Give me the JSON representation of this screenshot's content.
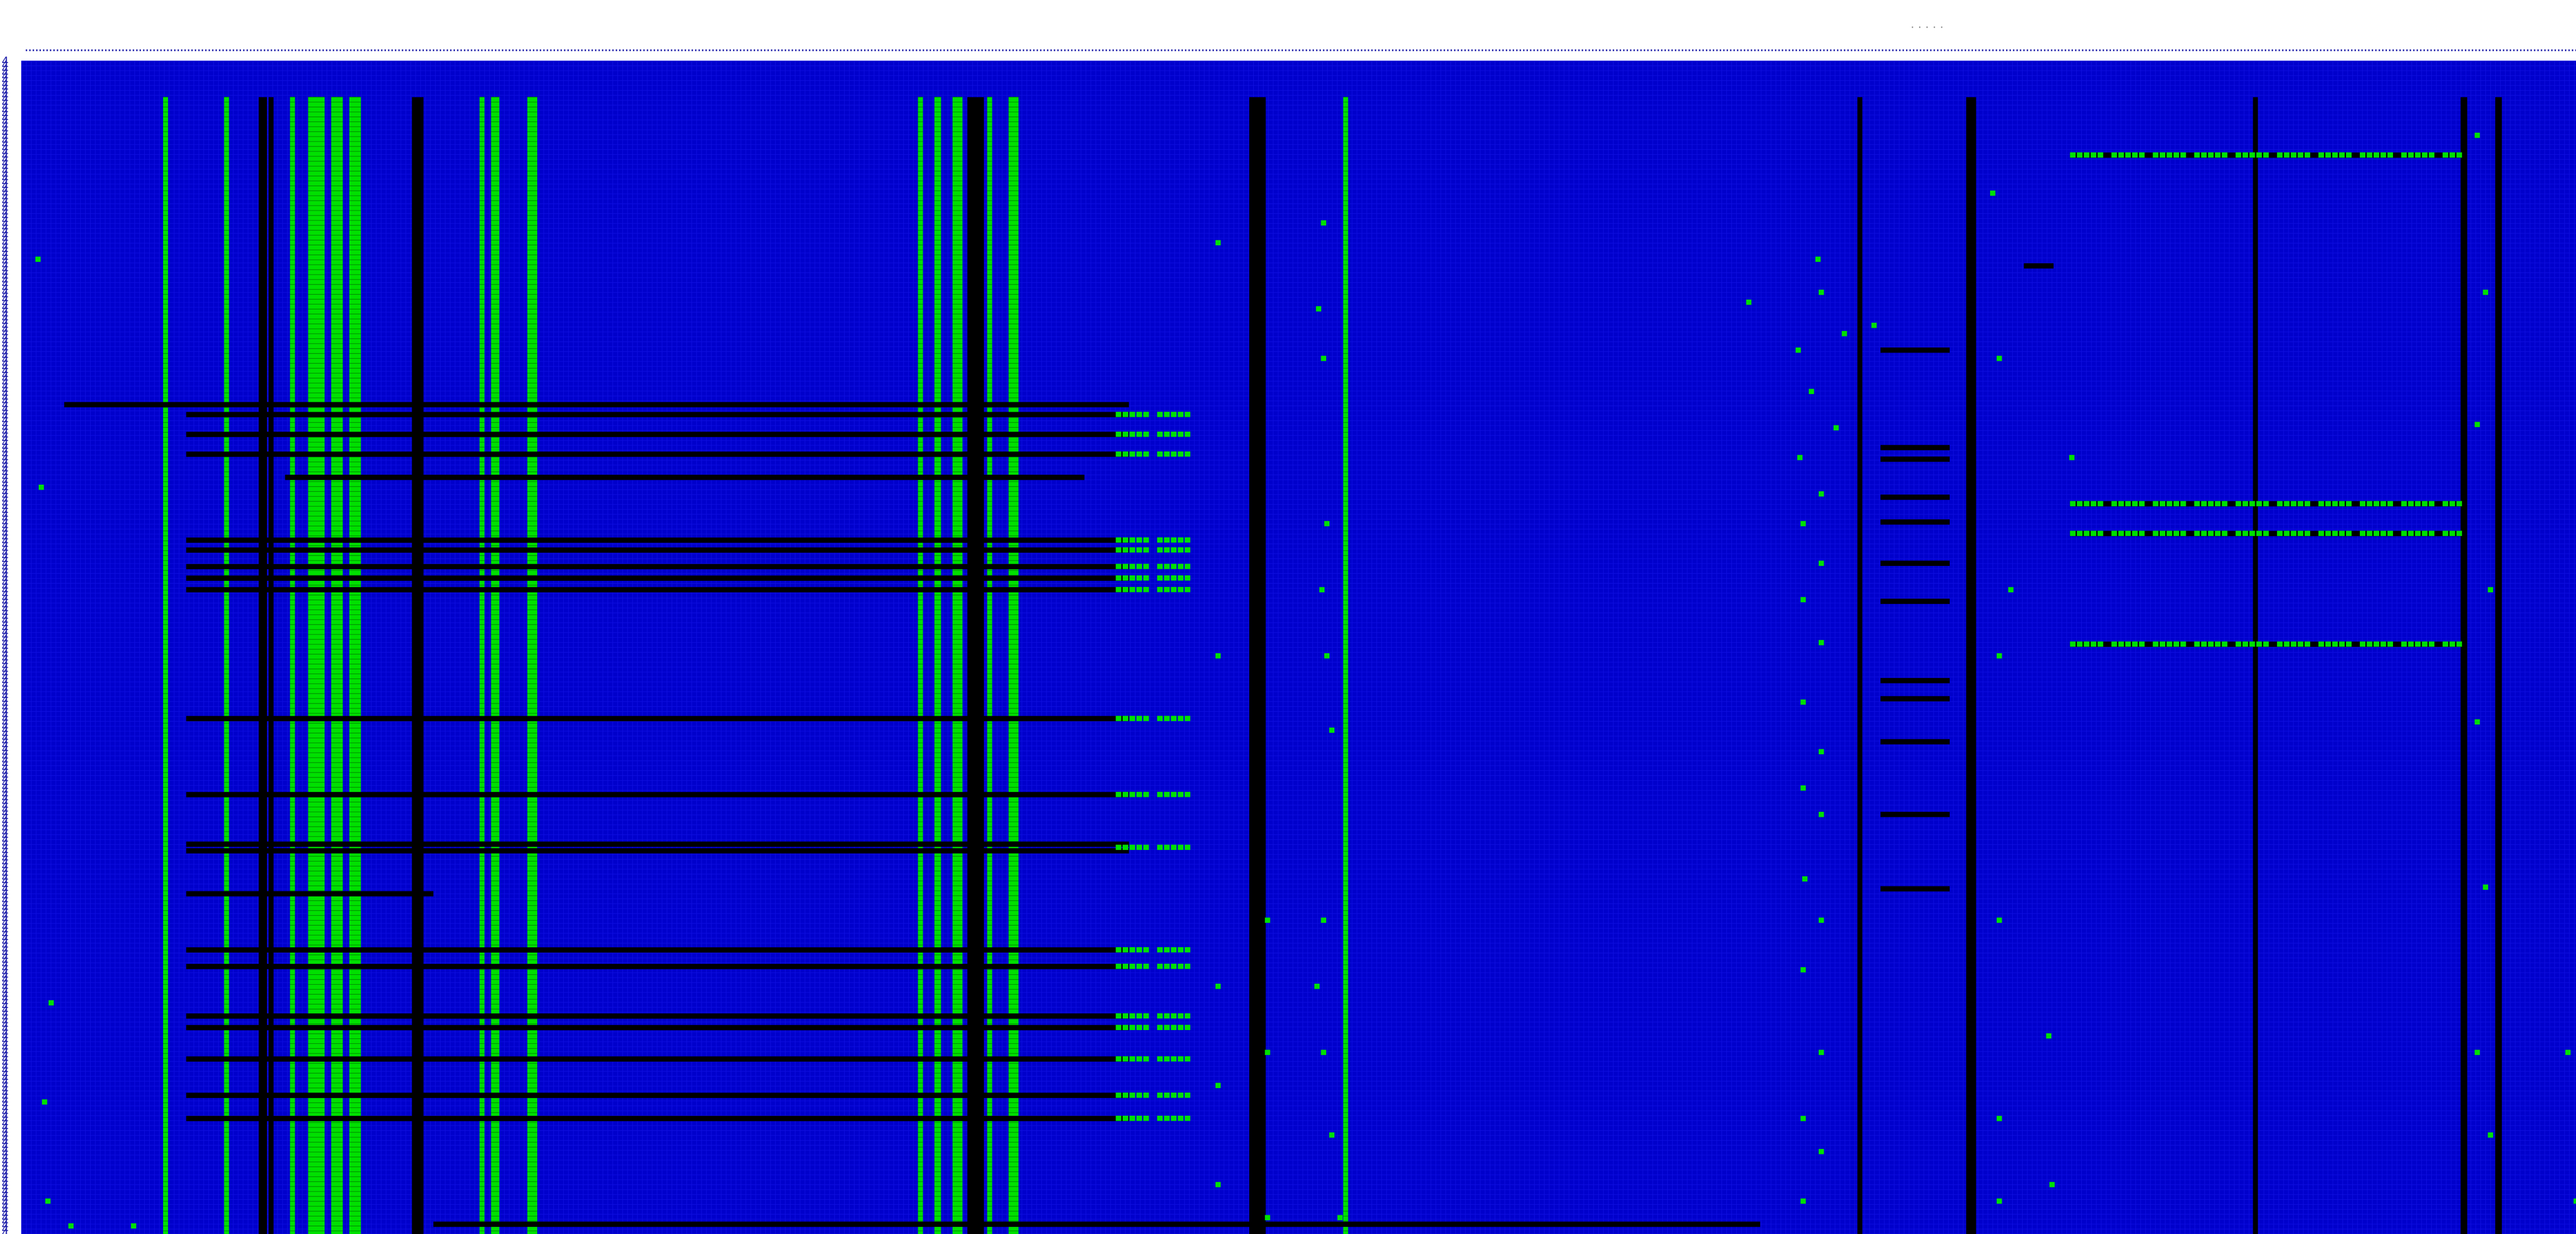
{
  "chart_data": {
    "type": "heatmap",
    "title": "· · · · ·",
    "row_tick_label": "4",
    "col_tick_label": "·",
    "x_categories_count": 1550,
    "y_categories_count": 710,
    "x_range": [
      0,
      1550
    ],
    "y_range": [
      0,
      710
    ],
    "state_legend": [
      {
        "state": "present",
        "color": "#00e000"
      },
      {
        "state": "absent",
        "color": "#0000cc"
      },
      {
        "state": "missing",
        "color": "#000000"
      }
    ],
    "column_bands": [
      {
        "col": 86,
        "width": 3,
        "state": "present",
        "y": [
          22,
          710
        ]
      },
      {
        "col": 123,
        "width": 3,
        "state": "present",
        "y": [
          22,
          710
        ]
      },
      {
        "col": 144,
        "width": 5,
        "state": "missing",
        "y": [
          22,
          710
        ]
      },
      {
        "col": 150,
        "width": 3,
        "state": "missing",
        "y": [
          22,
          710
        ]
      },
      {
        "col": 163,
        "width": 3,
        "state": "present",
        "y": [
          22,
          710
        ]
      },
      {
        "col": 174,
        "width": 10,
        "state": "present",
        "y": [
          22,
          710
        ]
      },
      {
        "col": 188,
        "width": 7,
        "state": "present",
        "y": [
          22,
          710
        ]
      },
      {
        "col": 199,
        "width": 7,
        "state": "present",
        "y": [
          22,
          710
        ]
      },
      {
        "col": 237,
        "width": 7,
        "state": "missing",
        "y": [
          22,
          710
        ]
      },
      {
        "col": 278,
        "width": 3,
        "state": "present",
        "y": [
          22,
          710
        ]
      },
      {
        "col": 285,
        "width": 5,
        "state": "present",
        "y": [
          22,
          710
        ]
      },
      {
        "col": 307,
        "width": 6,
        "state": "present",
        "y": [
          22,
          710
        ]
      },
      {
        "col": 544,
        "width": 3,
        "state": "present",
        "y": [
          22,
          710
        ]
      },
      {
        "col": 554,
        "width": 4,
        "state": "present",
        "y": [
          22,
          710
        ]
      },
      {
        "col": 565,
        "width": 6,
        "state": "present",
        "y": [
          22,
          710
        ]
      },
      {
        "col": 574,
        "width": 10,
        "state": "missing",
        "y": [
          22,
          710
        ]
      },
      {
        "col": 586,
        "width": 3,
        "state": "present",
        "y": [
          22,
          710
        ]
      },
      {
        "col": 599,
        "width": 6,
        "state": "present",
        "y": [
          22,
          710
        ]
      },
      {
        "col": 745,
        "width": 10,
        "state": "missing",
        "y": [
          22,
          710
        ]
      },
      {
        "col": 802,
        "width": 3,
        "state": "present",
        "y": [
          22,
          710
        ]
      },
      {
        "col": 1114,
        "width": 3,
        "state": "missing",
        "y": [
          22,
          710
        ]
      },
      {
        "col": 1180,
        "width": 6,
        "state": "missing",
        "y": [
          22,
          710
        ]
      },
      {
        "col": 1354,
        "width": 3,
        "state": "missing",
        "y": [
          22,
          710
        ]
      },
      {
        "col": 1480,
        "width": 4,
        "state": "missing",
        "y": [
          22,
          710
        ]
      },
      {
        "col": 1501,
        "width": 4,
        "state": "missing",
        "y": [
          22,
          710
        ]
      }
    ],
    "row_bands": [
      {
        "row": 208,
        "x": [
          26,
          672
        ],
        "state": "missing"
      },
      {
        "row": 214,
        "x": [
          100,
          672
        ],
        "state": "missing"
      },
      {
        "row": 226,
        "x": [
          100,
          672
        ],
        "state": "missing"
      },
      {
        "row": 238,
        "x": [
          100,
          672
        ],
        "state": "missing"
      },
      {
        "row": 252,
        "x": [
          160,
          645
        ],
        "state": "missing"
      },
      {
        "row": 290,
        "x": [
          100,
          672
        ],
        "state": "missing"
      },
      {
        "row": 296,
        "x": [
          100,
          672
        ],
        "state": "missing"
      },
      {
        "row": 306,
        "x": [
          100,
          672
        ],
        "state": "missing"
      },
      {
        "row": 313,
        "x": [
          100,
          672
        ],
        "state": "missing"
      },
      {
        "row": 320,
        "x": [
          100,
          672
        ],
        "state": "missing"
      },
      {
        "row": 398,
        "x": [
          100,
          672
        ],
        "state": "missing"
      },
      {
        "row": 444,
        "x": [
          100,
          672
        ],
        "state": "missing"
      },
      {
        "row": 474,
        "x": [
          100,
          672
        ],
        "state": "missing"
      },
      {
        "row": 478,
        "x": [
          100,
          672
        ],
        "state": "missing"
      },
      {
        "row": 504,
        "x": [
          100,
          250
        ],
        "state": "missing"
      },
      {
        "row": 538,
        "x": [
          100,
          672
        ],
        "state": "missing"
      },
      {
        "row": 548,
        "x": [
          100,
          672
        ],
        "state": "missing"
      },
      {
        "row": 578,
        "x": [
          100,
          672
        ],
        "state": "missing"
      },
      {
        "row": 585,
        "x": [
          100,
          672
        ],
        "state": "missing"
      },
      {
        "row": 604,
        "x": [
          100,
          672
        ],
        "state": "missing"
      },
      {
        "row": 626,
        "x": [
          100,
          672
        ],
        "state": "missing"
      },
      {
        "row": 640,
        "x": [
          100,
          672
        ],
        "state": "missing"
      },
      {
        "row": 704,
        "x": [
          250,
          1055
        ],
        "state": "missing"
      },
      {
        "row": 726,
        "x": [
          100,
          672
        ],
        "state": "missing"
      },
      {
        "row": 175,
        "x": [
          1128,
          1170
        ],
        "state": "missing"
      },
      {
        "row": 234,
        "x": [
          1128,
          1170
        ],
        "state": "missing"
      },
      {
        "row": 241,
        "x": [
          1128,
          1170
        ],
        "state": "missing"
      },
      {
        "row": 264,
        "x": [
          1128,
          1170
        ],
        "state": "missing"
      },
      {
        "row": 279,
        "x": [
          1128,
          1170
        ],
        "state": "missing"
      },
      {
        "row": 304,
        "x": [
          1128,
          1170
        ],
        "state": "missing"
      },
      {
        "row": 327,
        "x": [
          1128,
          1170
        ],
        "state": "missing"
      },
      {
        "row": 375,
        "x": [
          1128,
          1170
        ],
        "state": "missing"
      },
      {
        "row": 386,
        "x": [
          1128,
          1170
        ],
        "state": "missing"
      },
      {
        "row": 412,
        "x": [
          1128,
          1170
        ],
        "state": "missing"
      },
      {
        "row": 456,
        "x": [
          1128,
          1170
        ],
        "state": "missing"
      },
      {
        "row": 501,
        "x": [
          1128,
          1170
        ],
        "state": "missing"
      },
      {
        "row": 57,
        "x": [
          1243,
          1480
        ],
        "state": "missing"
      },
      {
        "row": 268,
        "x": [
          1243,
          1480
        ],
        "state": "missing"
      },
      {
        "row": 286,
        "x": [
          1243,
          1480
        ],
        "state": "missing"
      },
      {
        "row": 353,
        "x": [
          1243,
          1480
        ],
        "state": "missing"
      },
      {
        "row": 124,
        "x": [
          1215,
          1233
        ],
        "state": "missing"
      }
    ],
    "row_present_blocks": [
      {
        "row": 214,
        "x": [
          664,
          712
        ]
      },
      {
        "row": 226,
        "x": [
          664,
          712
        ]
      },
      {
        "row": 238,
        "x": [
          664,
          712
        ]
      },
      {
        "row": 290,
        "x": [
          664,
          712
        ]
      },
      {
        "row": 296,
        "x": [
          664,
          712
        ]
      },
      {
        "row": 306,
        "x": [
          664,
          712
        ]
      },
      {
        "row": 313,
        "x": [
          664,
          712
        ]
      },
      {
        "row": 320,
        "x": [
          664,
          712
        ]
      },
      {
        "row": 398,
        "x": [
          664,
          712
        ]
      },
      {
        "row": 444,
        "x": [
          664,
          712
        ]
      },
      {
        "row": 476,
        "x": [
          664,
          712
        ]
      },
      {
        "row": 538,
        "x": [
          664,
          712
        ]
      },
      {
        "row": 548,
        "x": [
          664,
          712
        ]
      },
      {
        "row": 578,
        "x": [
          664,
          712
        ]
      },
      {
        "row": 585,
        "x": [
          664,
          712
        ]
      },
      {
        "row": 604,
        "x": [
          664,
          712
        ]
      },
      {
        "row": 626,
        "x": [
          664,
          712
        ]
      },
      {
        "row": 640,
        "x": [
          664,
          712
        ]
      },
      {
        "row": 726,
        "x": [
          664,
          712
        ]
      },
      {
        "row": 57,
        "x": [
          1243,
          1480
        ]
      },
      {
        "row": 268,
        "x": [
          1243,
          1480
        ]
      },
      {
        "row": 286,
        "x": [
          1243,
          1480
        ]
      },
      {
        "row": 353,
        "x": [
          1243,
          1480
        ]
      }
    ],
    "scattered_present_cells": [
      [
        1090,
        120
      ],
      [
        1092,
        140
      ],
      [
        1106,
        165
      ],
      [
        1124,
        160
      ],
      [
        1048,
        146
      ],
      [
        1078,
        175
      ],
      [
        1086,
        200
      ],
      [
        1101,
        222
      ],
      [
        1079,
        240
      ],
      [
        1092,
        262
      ],
      [
        1081,
        280
      ],
      [
        1092,
        304
      ],
      [
        1081,
        326
      ],
      [
        1092,
        352
      ],
      [
        1081,
        388
      ],
      [
        1092,
        418
      ],
      [
        1081,
        440
      ],
      [
        1092,
        456
      ],
      [
        1082,
        495
      ],
      [
        1092,
        520
      ],
      [
        1081,
        550
      ],
      [
        1092,
        600
      ],
      [
        1081,
        640
      ],
      [
        1092,
        660
      ],
      [
        1081,
        690
      ],
      [
        1196,
        80
      ],
      [
        1200,
        180
      ],
      [
        1207,
        320
      ],
      [
        1200,
        360
      ],
      [
        1200,
        520
      ],
      [
        1200,
        640
      ],
      [
        1200,
        690
      ],
      [
        1230,
        590
      ],
      [
        1232,
        680
      ],
      [
        1244,
        240
      ],
      [
        1490,
        45
      ],
      [
        1495,
        140
      ],
      [
        1490,
        220
      ],
      [
        1498,
        320
      ],
      [
        1490,
        400
      ],
      [
        1495,
        500
      ],
      [
        1490,
        600
      ],
      [
        1498,
        650
      ],
      [
        1545,
        600
      ],
      [
        1550,
        690
      ],
      [
        790,
        98
      ],
      [
        787,
        150
      ],
      [
        790,
        180
      ],
      [
        792,
        280
      ],
      [
        789,
        320
      ],
      [
        792,
        360
      ],
      [
        795,
        405
      ],
      [
        790,
        520
      ],
      [
        786,
        560
      ],
      [
        790,
        600
      ],
      [
        795,
        650
      ],
      [
        800,
        700
      ],
      [
        726,
        110
      ],
      [
        726,
        360
      ],
      [
        726,
        560
      ],
      [
        726,
        620
      ],
      [
        726,
        680
      ],
      [
        756,
        520
      ],
      [
        756,
        600
      ],
      [
        756,
        700
      ],
      [
        10,
        120
      ],
      [
        12,
        258
      ],
      [
        18,
        570
      ],
      [
        14,
        630
      ],
      [
        16,
        690
      ],
      [
        30,
        705
      ],
      [
        68,
        705
      ]
    ]
  }
}
